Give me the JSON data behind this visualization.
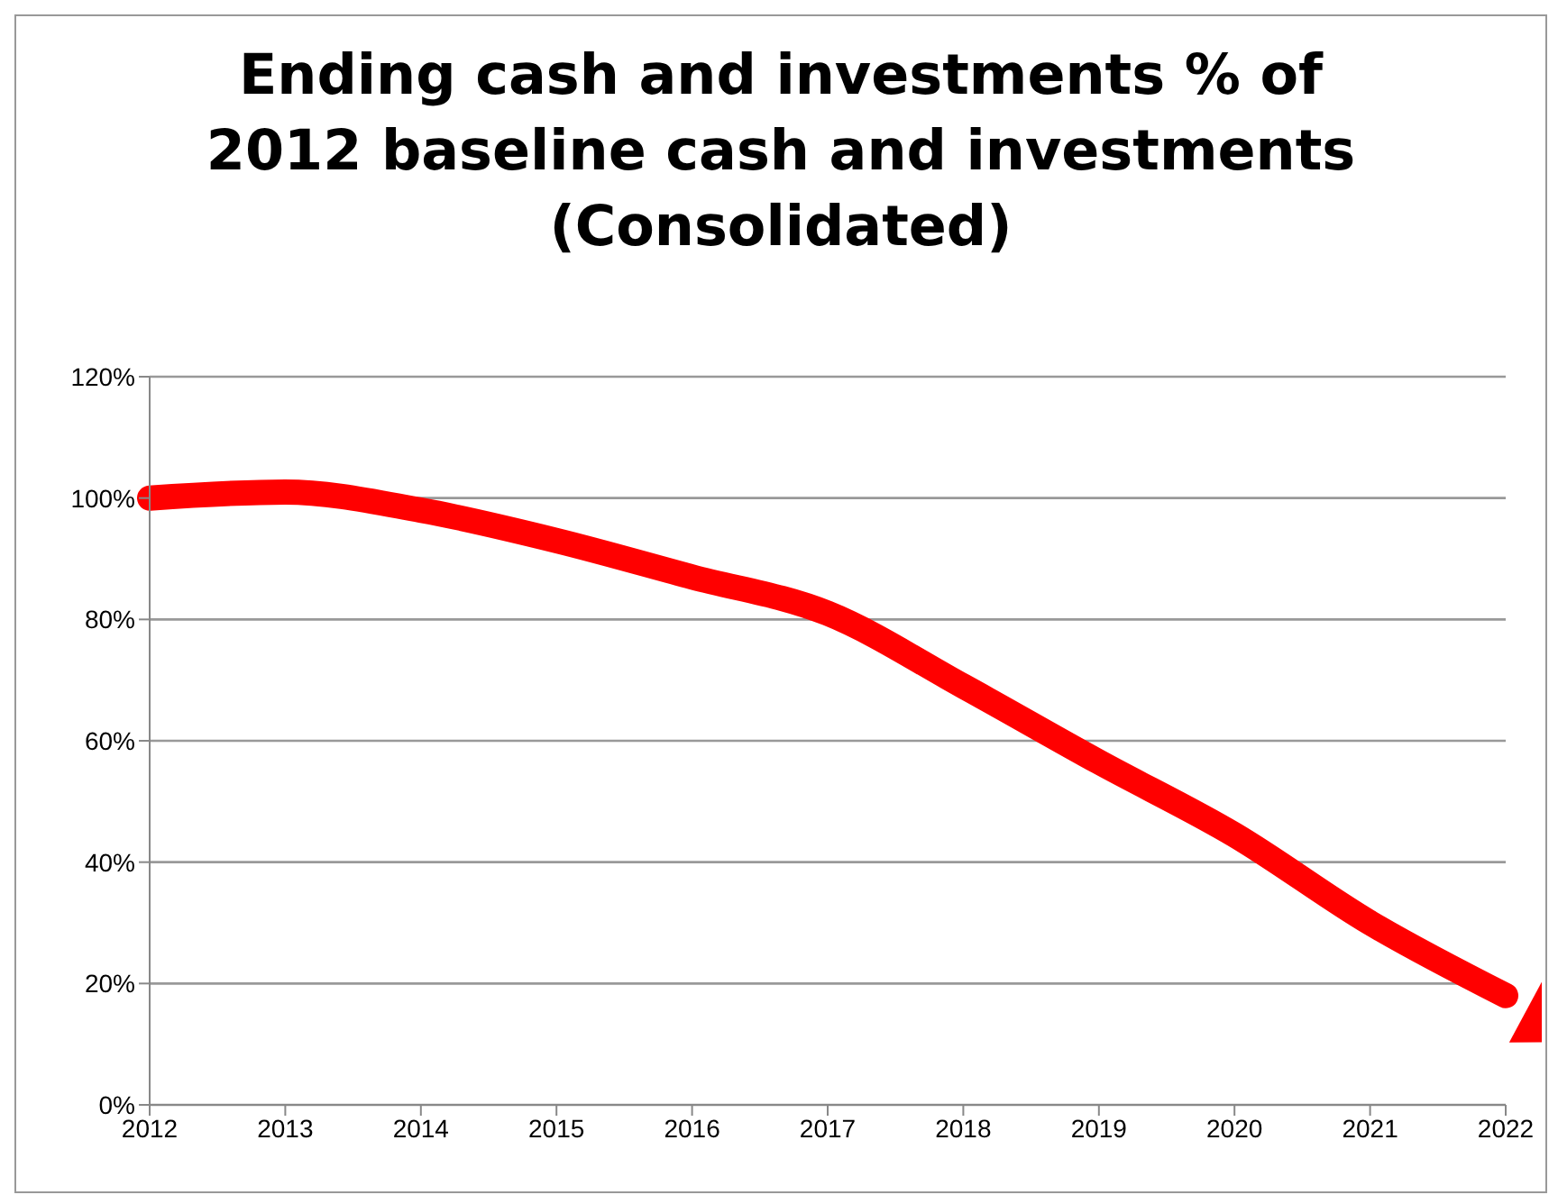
{
  "chart_data": {
    "type": "line",
    "title": "Ending cash and investments % of 2012 baseline cash and investments (Consolidated)",
    "categories": [
      "2012",
      "2013",
      "2014",
      "2015",
      "2016",
      "2017",
      "2018",
      "2019",
      "2020",
      "2021",
      "2022"
    ],
    "series": [
      {
        "color": "#ff0000",
        "values": [
          100,
          101,
          98,
          93,
          87,
          81,
          69,
          56.5,
          44.5,
          30,
          18
        ]
      }
    ],
    "ylim": [
      0,
      120
    ],
    "yticks": [
      {
        "value": 0,
        "label": "0%"
      },
      {
        "value": 20,
        "label": "20%"
      },
      {
        "value": 40,
        "label": "40%"
      },
      {
        "value": 60,
        "label": "60%"
      },
      {
        "value": 80,
        "label": "80%"
      },
      {
        "value": 100,
        "label": "100%"
      },
      {
        "value": 120,
        "label": "120%"
      }
    ],
    "grid": "y",
    "legend": false,
    "marker": "none",
    "line_style": "solid"
  }
}
